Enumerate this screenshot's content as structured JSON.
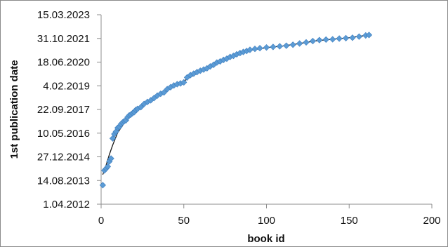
{
  "chart_data": {
    "type": "scatter",
    "title": "",
    "xlabel": "book id",
    "ylabel": "1st publication date",
    "xlim": [
      0,
      200
    ],
    "x_ticks": [
      0,
      50,
      100,
      150,
      200
    ],
    "ylim": [
      "2012-04-01",
      "2023-03-15"
    ],
    "y_ticks": [
      "1.04.2012",
      "14.08.2013",
      "27.12.2014",
      "10.05.2016",
      "22.09.2017",
      "4.02.2019",
      "18.06.2020",
      "31.10.2021",
      "15.03.2023"
    ],
    "grid": false,
    "legend": "none",
    "colors": {
      "marker": "#5b9bd5",
      "marker_edge": "#3f7fbf",
      "trend": "#1a1a1a",
      "axis": "#8c8c8c"
    },
    "series": [
      {
        "marker": "diamond",
        "points": [
          [
            1,
            "2013-05-07"
          ],
          [
            2,
            "2014-03-15"
          ],
          [
            3,
            "2014-04-23"
          ],
          [
            4,
            "2014-06-05"
          ],
          [
            5,
            "2014-09-20"
          ],
          [
            6,
            "2014-11-22"
          ],
          [
            7,
            "2016-01-20"
          ],
          [
            8,
            "2016-04-22"
          ],
          [
            9,
            "2016-06-12"
          ],
          [
            10,
            "2016-08-30"
          ],
          [
            11,
            "2016-09-19"
          ],
          [
            12,
            "2016-11-14"
          ],
          [
            13,
            "2016-12-22"
          ],
          [
            14,
            "2017-01-18"
          ],
          [
            15,
            "2017-02-05"
          ],
          [
            16,
            "2017-04-11"
          ],
          [
            17,
            "2017-05-20"
          ],
          [
            18,
            "2017-06-07"
          ],
          [
            19,
            "2017-07-07"
          ],
          [
            20,
            "2017-07-27"
          ],
          [
            21,
            "2017-09-12"
          ],
          [
            22,
            "2017-10-04"
          ],
          [
            24,
            "2017-11-10"
          ],
          [
            26,
            "2018-01-16"
          ],
          [
            28,
            "2018-02-28"
          ],
          [
            30,
            "2018-04-03"
          ],
          [
            32,
            "2018-05-20"
          ],
          [
            34,
            "2018-07-11"
          ],
          [
            36,
            "2018-08-19"
          ],
          [
            38,
            "2018-09-16"
          ],
          [
            40,
            "2018-11-26"
          ],
          [
            42,
            "2019-01-05"
          ],
          [
            44,
            "2019-02-11"
          ],
          [
            46,
            "2019-03-10"
          ],
          [
            48,
            "2019-03-26"
          ],
          [
            50,
            "2019-04-17"
          ],
          [
            52,
            "2019-07-30"
          ],
          [
            54,
            "2019-09-17"
          ],
          [
            56,
            "2019-10-19"
          ],
          [
            58,
            "2019-11-19"
          ],
          [
            60,
            "2019-12-19"
          ],
          [
            62,
            "2020-01-13"
          ],
          [
            64,
            "2020-02-07"
          ],
          [
            66,
            "2020-03-19"
          ],
          [
            68,
            "2020-04-22"
          ],
          [
            70,
            "2020-06-09"
          ],
          [
            72,
            "2020-07-03"
          ],
          [
            74,
            "2020-08-04"
          ],
          [
            76,
            "2020-08-29"
          ],
          [
            78,
            "2020-10-05"
          ],
          [
            80,
            "2020-10-28"
          ],
          [
            82,
            "2020-11-30"
          ],
          [
            84,
            "2020-12-25"
          ],
          [
            86,
            "2021-01-19"
          ],
          [
            88,
            "2021-02-08"
          ],
          [
            90,
            "2021-03-05"
          ],
          [
            93,
            "2021-03-24"
          ],
          [
            96,
            "2021-04-08"
          ],
          [
            100,
            "2021-04-23"
          ],
          [
            104,
            "2021-05-04"
          ],
          [
            108,
            "2021-05-18"
          ],
          [
            112,
            "2021-05-30"
          ],
          [
            116,
            "2021-06-20"
          ],
          [
            120,
            "2021-07-16"
          ],
          [
            124,
            "2021-08-09"
          ],
          [
            128,
            "2021-09-05"
          ],
          [
            132,
            "2021-09-25"
          ],
          [
            136,
            "2021-10-07"
          ],
          [
            140,
            "2021-10-12"
          ],
          [
            144,
            "2021-10-28"
          ],
          [
            148,
            "2021-11-05"
          ],
          [
            152,
            "2021-11-15"
          ],
          [
            156,
            "2021-12-08"
          ],
          [
            160,
            "2022-01-02"
          ],
          [
            162,
            "2022-01-12"
          ]
        ]
      }
    ],
    "trendline": {
      "points": [
        [
          1,
          "2013-12-15"
        ],
        [
          3,
          "2014-07-01"
        ],
        [
          5,
          "2015-02-15"
        ],
        [
          7,
          "2015-09-01"
        ],
        [
          10,
          "2016-05-20"
        ],
        [
          15,
          "2017-02-01"
        ],
        [
          20,
          "2017-07-20"
        ],
        [
          25,
          "2017-12-01"
        ],
        [
          30,
          "2018-04-01"
        ],
        [
          35,
          "2018-07-20"
        ],
        [
          40,
          "2018-11-01"
        ],
        [
          45,
          "2019-02-15"
        ],
        [
          50,
          "2019-05-15"
        ],
        [
          55,
          "2019-08-25"
        ],
        [
          60,
          "2019-11-25"
        ],
        [
          65,
          "2020-02-25"
        ],
        [
          70,
          "2020-05-25"
        ],
        [
          80,
          "2020-10-20"
        ],
        [
          90,
          "2021-02-20"
        ],
        [
          100,
          "2021-04-20"
        ],
        [
          110,
          "2021-05-25"
        ],
        [
          120,
          "2021-07-15"
        ],
        [
          130,
          "2021-09-10"
        ],
        [
          140,
          "2021-10-15"
        ],
        [
          150,
          "2021-11-15"
        ],
        [
          160,
          "2022-01-01"
        ],
        [
          162,
          "2022-01-10"
        ]
      ]
    }
  }
}
